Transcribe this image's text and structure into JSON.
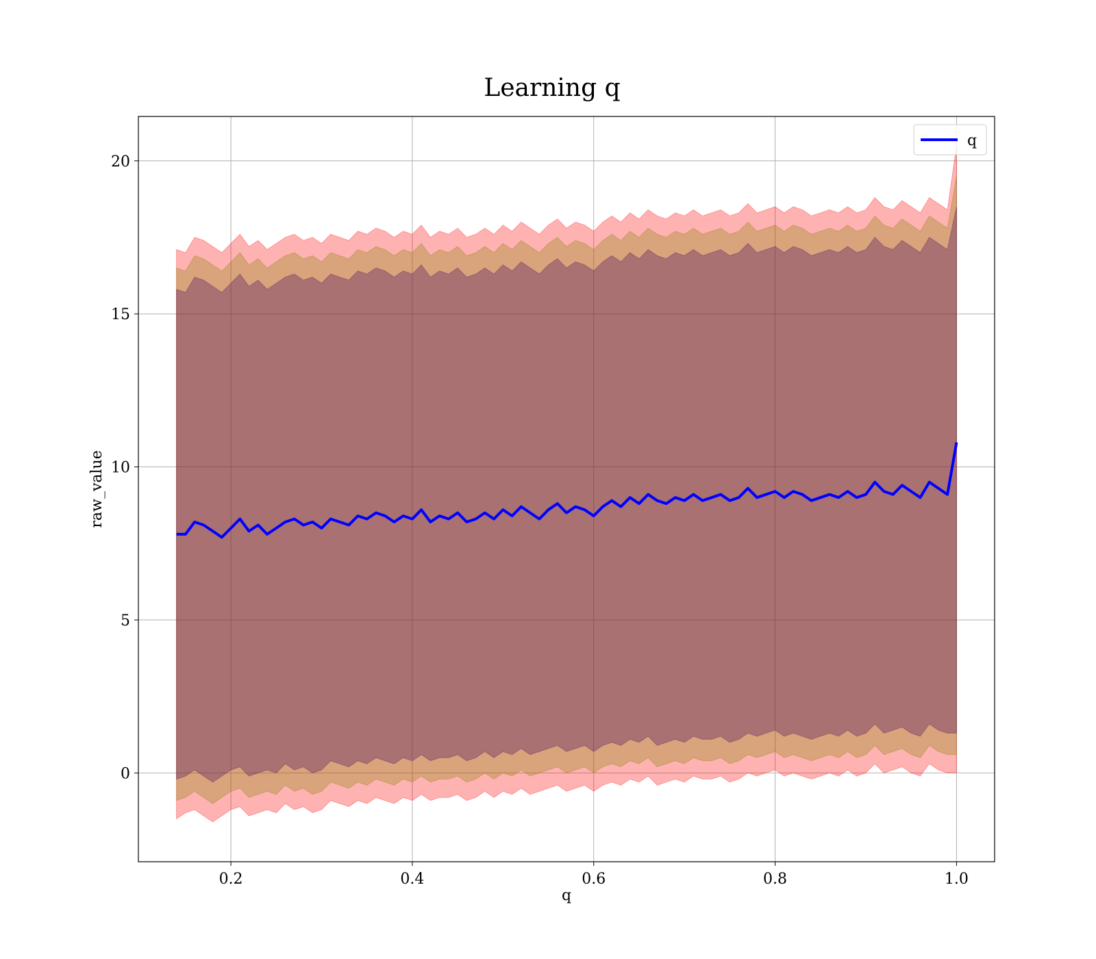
{
  "chart_data": {
    "type": "line",
    "title": "Learning q",
    "xlabel": "q",
    "ylabel": "raw_value",
    "xlim": [
      0.098,
      1.042
    ],
    "ylim": [
      -2.9,
      21.45
    ],
    "xticks": [
      0.2,
      0.4,
      0.6,
      0.8,
      1.0
    ],
    "xtick_labels": [
      "0.2",
      "0.4",
      "0.6",
      "0.8",
      "1.0"
    ],
    "yticks": [
      0,
      5,
      10,
      15,
      20
    ],
    "ytick_labels": [
      "0",
      "5",
      "10",
      "15",
      "20"
    ],
    "grid": true,
    "legend_position": "top-right",
    "x": [
      0.14,
      0.15,
      0.16,
      0.17,
      0.18,
      0.19,
      0.2,
      0.21,
      0.22,
      0.23,
      0.24,
      0.25,
      0.26,
      0.27,
      0.28,
      0.29,
      0.3,
      0.31,
      0.32,
      0.33,
      0.34,
      0.35,
      0.36,
      0.37,
      0.38,
      0.39,
      0.4,
      0.41,
      0.42,
      0.43,
      0.44,
      0.45,
      0.46,
      0.47,
      0.48,
      0.49,
      0.5,
      0.51,
      0.52,
      0.53,
      0.54,
      0.55,
      0.56,
      0.57,
      0.58,
      0.59,
      0.6,
      0.61,
      0.62,
      0.63,
      0.64,
      0.65,
      0.66,
      0.67,
      0.68,
      0.69,
      0.7,
      0.71,
      0.72,
      0.73,
      0.74,
      0.75,
      0.76,
      0.77,
      0.78,
      0.79,
      0.8,
      0.81,
      0.82,
      0.83,
      0.84,
      0.85,
      0.86,
      0.87,
      0.88,
      0.89,
      0.9,
      0.91,
      0.92,
      0.93,
      0.94,
      0.95,
      0.96,
      0.97,
      0.98,
      0.99,
      1.0
    ],
    "series": [
      {
        "name": "q",
        "color": "#0000ff",
        "values": [
          7.8,
          7.8,
          8.2,
          8.1,
          7.9,
          7.7,
          8.0,
          8.3,
          7.9,
          8.1,
          7.8,
          8.0,
          8.2,
          8.3,
          8.1,
          8.2,
          8.0,
          8.3,
          8.2,
          8.1,
          8.4,
          8.3,
          8.5,
          8.4,
          8.2,
          8.4,
          8.3,
          8.6,
          8.2,
          8.4,
          8.3,
          8.5,
          8.2,
          8.3,
          8.5,
          8.3,
          8.6,
          8.4,
          8.7,
          8.5,
          8.3,
          8.6,
          8.8,
          8.5,
          8.7,
          8.6,
          8.4,
          8.7,
          8.9,
          8.7,
          9.0,
          8.8,
          9.1,
          8.9,
          8.8,
          9.0,
          8.9,
          9.1,
          8.9,
          9.0,
          9.1,
          8.9,
          9.0,
          9.3,
          9.0,
          9.1,
          9.2,
          9.0,
          9.2,
          9.1,
          8.9,
          9.0,
          9.1,
          9.0,
          9.2,
          9.0,
          9.1,
          9.5,
          9.2,
          9.1,
          9.4,
          9.2,
          9.0,
          9.5,
          9.3,
          9.1,
          10.8
        ]
      }
    ],
    "bands": [
      {
        "color": "#ff0000",
        "lower": [
          -1.5,
          -1.3,
          -1.2,
          -1.4,
          -1.6,
          -1.4,
          -1.2,
          -1.1,
          -1.4,
          -1.3,
          -1.2,
          -1.3,
          -1.0,
          -1.2,
          -1.1,
          -1.3,
          -1.2,
          -0.9,
          -1.0,
          -1.1,
          -0.9,
          -1.0,
          -0.8,
          -0.9,
          -1.0,
          -0.8,
          -0.9,
          -0.7,
          -0.9,
          -0.8,
          -0.8,
          -0.7,
          -0.9,
          -0.8,
          -0.6,
          -0.8,
          -0.6,
          -0.7,
          -0.5,
          -0.7,
          -0.6,
          -0.5,
          -0.4,
          -0.6,
          -0.5,
          -0.4,
          -0.6,
          -0.4,
          -0.3,
          -0.4,
          -0.2,
          -0.3,
          -0.1,
          -0.4,
          -0.3,
          -0.2,
          -0.3,
          -0.1,
          -0.2,
          -0.2,
          -0.1,
          -0.3,
          -0.2,
          0.0,
          -0.1,
          0.0,
          0.1,
          -0.1,
          0.0,
          -0.1,
          -0.2,
          -0.1,
          0.0,
          -0.1,
          0.1,
          -0.1,
          0.0,
          0.3,
          0.0,
          0.1,
          0.2,
          0.0,
          -0.1,
          0.3,
          0.1,
          0.0,
          0.0
        ],
        "upper": [
          17.1,
          17.0,
          17.5,
          17.4,
          17.2,
          17.0,
          17.3,
          17.6,
          17.2,
          17.4,
          17.1,
          17.3,
          17.5,
          17.6,
          17.4,
          17.5,
          17.3,
          17.6,
          17.5,
          17.4,
          17.7,
          17.6,
          17.8,
          17.7,
          17.5,
          17.7,
          17.6,
          17.9,
          17.5,
          17.7,
          17.6,
          17.8,
          17.5,
          17.6,
          17.8,
          17.6,
          17.9,
          17.7,
          18.0,
          17.8,
          17.6,
          17.9,
          18.1,
          17.8,
          18.0,
          17.9,
          17.7,
          18.0,
          18.2,
          18.0,
          18.3,
          18.1,
          18.4,
          18.2,
          18.1,
          18.3,
          18.2,
          18.4,
          18.2,
          18.3,
          18.4,
          18.2,
          18.3,
          18.6,
          18.3,
          18.4,
          18.5,
          18.3,
          18.5,
          18.4,
          18.2,
          18.3,
          18.4,
          18.3,
          18.5,
          18.3,
          18.4,
          18.8,
          18.5,
          18.4,
          18.7,
          18.5,
          18.3,
          18.8,
          18.6,
          18.4,
          20.5
        ]
      },
      {
        "color": "#808000",
        "lower": [
          -0.9,
          -0.8,
          -0.6,
          -0.8,
          -1.0,
          -0.8,
          -0.6,
          -0.5,
          -0.8,
          -0.7,
          -0.6,
          -0.7,
          -0.4,
          -0.6,
          -0.5,
          -0.7,
          -0.6,
          -0.3,
          -0.4,
          -0.5,
          -0.3,
          -0.4,
          -0.2,
          -0.3,
          -0.4,
          -0.2,
          -0.3,
          -0.1,
          -0.3,
          -0.2,
          -0.2,
          -0.1,
          -0.3,
          -0.2,
          0.0,
          -0.2,
          0.0,
          -0.1,
          0.1,
          -0.1,
          0.0,
          0.1,
          0.2,
          0.0,
          0.1,
          0.2,
          0.0,
          0.2,
          0.3,
          0.2,
          0.4,
          0.3,
          0.5,
          0.2,
          0.3,
          0.4,
          0.3,
          0.5,
          0.4,
          0.4,
          0.5,
          0.3,
          0.4,
          0.6,
          0.5,
          0.6,
          0.7,
          0.5,
          0.6,
          0.5,
          0.4,
          0.5,
          0.6,
          0.5,
          0.7,
          0.5,
          0.6,
          0.9,
          0.6,
          0.7,
          0.8,
          0.6,
          0.5,
          0.9,
          0.7,
          0.6,
          0.6
        ],
        "upper": [
          16.5,
          16.4,
          16.9,
          16.8,
          16.6,
          16.4,
          16.7,
          17.0,
          16.6,
          16.8,
          16.5,
          16.7,
          16.9,
          17.0,
          16.8,
          16.9,
          16.7,
          17.0,
          16.9,
          16.8,
          17.1,
          17.0,
          17.2,
          17.1,
          16.9,
          17.1,
          17.0,
          17.3,
          16.9,
          17.1,
          17.0,
          17.2,
          16.9,
          17.0,
          17.2,
          17.0,
          17.3,
          17.1,
          17.4,
          17.2,
          17.0,
          17.3,
          17.5,
          17.2,
          17.4,
          17.3,
          17.1,
          17.4,
          17.6,
          17.4,
          17.7,
          17.5,
          17.8,
          17.6,
          17.5,
          17.7,
          17.6,
          17.8,
          17.6,
          17.7,
          17.8,
          17.6,
          17.7,
          18.0,
          17.7,
          17.8,
          17.9,
          17.7,
          17.9,
          17.8,
          17.6,
          17.7,
          17.8,
          17.7,
          17.9,
          17.7,
          17.8,
          18.2,
          17.9,
          17.8,
          18.1,
          17.9,
          17.7,
          18.2,
          18.0,
          17.8,
          19.5
        ]
      },
      {
        "color": "#400060",
        "lower": [
          -0.2,
          -0.1,
          0.1,
          -0.1,
          -0.3,
          -0.1,
          0.1,
          0.2,
          -0.1,
          0.0,
          0.1,
          0.0,
          0.3,
          0.1,
          0.2,
          0.0,
          0.1,
          0.4,
          0.3,
          0.2,
          0.4,
          0.3,
          0.5,
          0.4,
          0.3,
          0.5,
          0.4,
          0.6,
          0.4,
          0.5,
          0.5,
          0.6,
          0.4,
          0.5,
          0.7,
          0.5,
          0.7,
          0.6,
          0.8,
          0.6,
          0.7,
          0.8,
          0.9,
          0.7,
          0.8,
          0.9,
          0.7,
          0.9,
          1.0,
          0.9,
          1.1,
          1.0,
          1.2,
          0.9,
          1.0,
          1.1,
          1.0,
          1.2,
          1.1,
          1.1,
          1.2,
          1.0,
          1.1,
          1.3,
          1.2,
          1.3,
          1.4,
          1.2,
          1.3,
          1.2,
          1.1,
          1.2,
          1.3,
          1.2,
          1.4,
          1.2,
          1.3,
          1.6,
          1.3,
          1.4,
          1.5,
          1.3,
          1.2,
          1.6,
          1.4,
          1.3,
          1.3
        ],
        "upper": [
          15.8,
          15.7,
          16.2,
          16.1,
          15.9,
          15.7,
          16.0,
          16.3,
          15.9,
          16.1,
          15.8,
          16.0,
          16.2,
          16.3,
          16.1,
          16.2,
          16.0,
          16.3,
          16.2,
          16.1,
          16.4,
          16.3,
          16.5,
          16.4,
          16.2,
          16.4,
          16.3,
          16.6,
          16.2,
          16.4,
          16.3,
          16.5,
          16.2,
          16.3,
          16.5,
          16.3,
          16.6,
          16.4,
          16.7,
          16.5,
          16.3,
          16.6,
          16.8,
          16.5,
          16.7,
          16.6,
          16.4,
          16.7,
          16.9,
          16.7,
          17.0,
          16.8,
          17.1,
          16.9,
          16.8,
          17.0,
          16.9,
          17.1,
          16.9,
          17.0,
          17.1,
          16.9,
          17.0,
          17.3,
          17.0,
          17.1,
          17.2,
          17.0,
          17.2,
          17.1,
          16.9,
          17.0,
          17.1,
          17.0,
          17.2,
          17.0,
          17.1,
          17.5,
          17.2,
          17.1,
          17.4,
          17.2,
          17.0,
          17.5,
          17.3,
          17.1,
          18.5
        ]
      }
    ]
  }
}
